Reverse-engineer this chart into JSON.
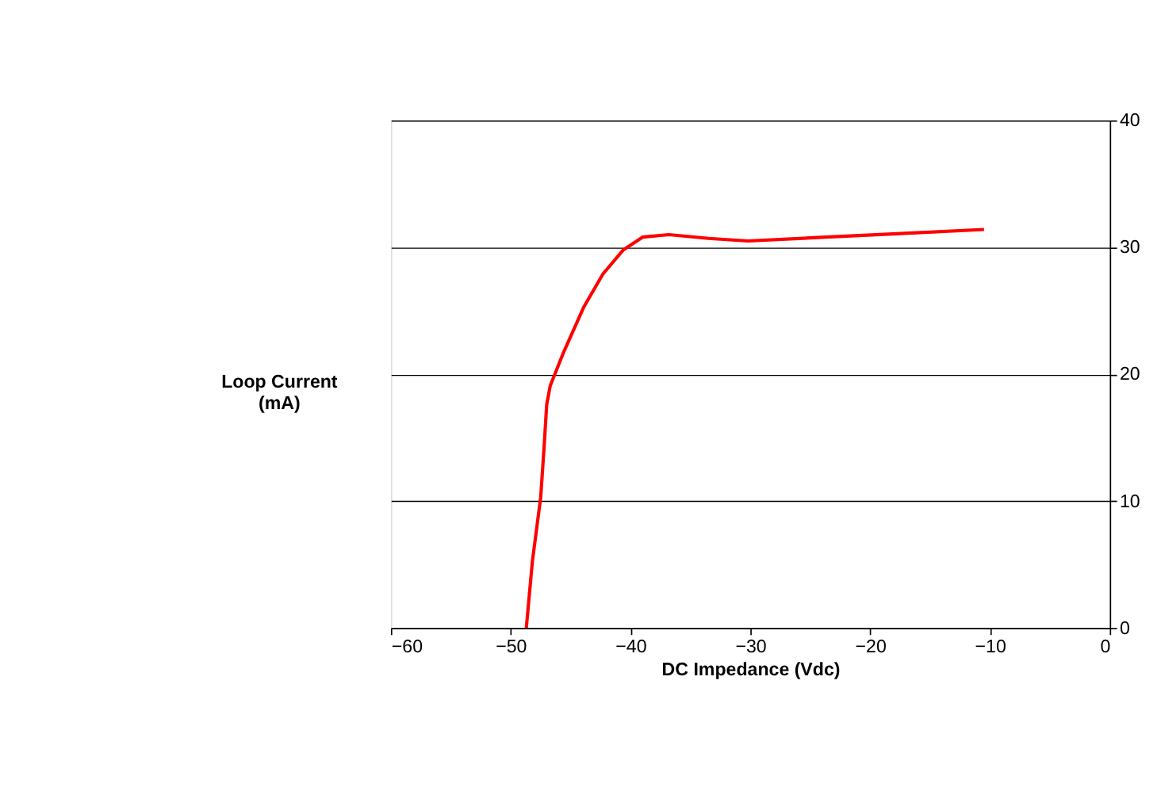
{
  "chart_data": {
    "type": "line",
    "xlabel": "DC Impedance (Vdc)",
    "ylabel": "Loop Current (mA)",
    "x": [
      -48.7,
      -48.2,
      -47.5,
      -47.2,
      -47.0,
      -46.7,
      -45.6,
      -43.9,
      -42.3,
      -40.6,
      -39.0,
      -36.8,
      -33.5,
      -30.2,
      -23.7,
      -17.1,
      -10.5
    ],
    "series": [
      {
        "color": "#ff0000",
        "values": [
          0,
          5.2,
          10.3,
          14.5,
          17.6,
          19.1,
          21.7,
          25.3,
          27.9,
          29.8,
          30.8,
          31.0,
          30.7,
          30.5,
          30.8,
          31.1,
          31.4
        ]
      }
    ],
    "xlim": [
      -60,
      0
    ],
    "xticks": [
      -60,
      -50,
      -40,
      -30,
      -20,
      -10,
      0
    ],
    "ylim": [
      0,
      40
    ],
    "yticks": [
      0,
      10,
      20,
      30,
      40
    ],
    "grid": "y",
    "legend": false,
    "marker": "none",
    "line_style": "solid"
  }
}
